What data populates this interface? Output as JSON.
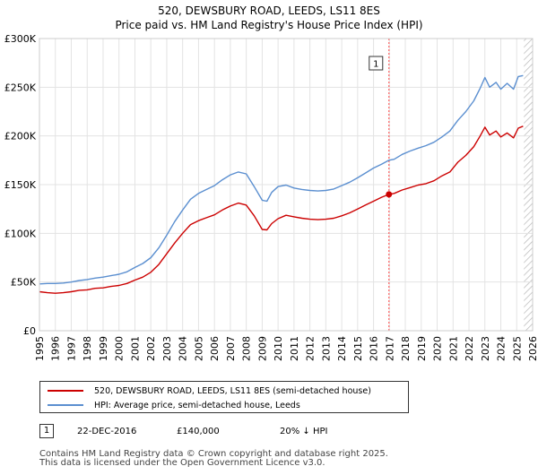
{
  "title_line1": "520, DEWSBURY ROAD, LEEDS, LS11 8ES",
  "title_line2": "Price paid vs. HM Land Registry's House Price Index (HPI)",
  "chart_data": {
    "type": "line",
    "title": "520, DEWSBURY ROAD, LEEDS, LS11 8ES — Price paid vs. HM Land Registry's House Price Index (HPI)",
    "xlabel": "",
    "ylabel": "",
    "xlim": [
      1995,
      2026
    ],
    "ylim": [
      0,
      300000
    ],
    "x_ticks": [
      1995,
      1996,
      1997,
      1998,
      1999,
      2000,
      2001,
      2002,
      2003,
      2004,
      2005,
      2006,
      2007,
      2008,
      2009,
      2010,
      2011,
      2012,
      2013,
      2014,
      2015,
      2016,
      2017,
      2018,
      2019,
      2020,
      2021,
      2022,
      2023,
      2024,
      2025,
      2026
    ],
    "y_ticks": [
      0,
      50000,
      100000,
      150000,
      200000,
      250000,
      300000
    ],
    "y_tick_labels": [
      "£0",
      "£50K",
      "£100K",
      "£150K",
      "£200K",
      "£250K",
      "£300K"
    ],
    "grid": true,
    "colors": {
      "property": "#cc0000",
      "hpi": "#5b8fd0",
      "marker_line": "#ff4444",
      "future_hatch": "#bbbbbb"
    },
    "series": [
      {
        "name": "520, DEWSBURY ROAD, LEEDS, LS11 8ES (semi-detached house)",
        "x": [
          1995,
          1995.5,
          1996,
          1996.5,
          1997,
          1997.5,
          1998,
          1998.5,
          1999,
          1999.5,
          2000,
          2000.5,
          2001,
          2001.5,
          2002,
          2002.5,
          2003,
          2003.5,
          2004,
          2004.5,
          2005,
          2005.5,
          2006,
          2006.5,
          2007,
          2007.5,
          2008,
          2008.5,
          2009,
          2009.3,
          2009.6,
          2010,
          2010.5,
          2011,
          2011.5,
          2012,
          2012.5,
          2013,
          2013.5,
          2014,
          2014.5,
          2015,
          2015.5,
          2016,
          2016.5,
          2016.97,
          2017.3,
          2017.8,
          2018.3,
          2018.8,
          2019.3,
          2019.8,
          2020.3,
          2020.8,
          2021.3,
          2021.8,
          2022.3,
          2022.7,
          2023,
          2023.3,
          2023.7,
          2024,
          2024.4,
          2024.8,
          2025.1,
          2025.4
        ],
        "values": [
          40000,
          39000,
          38500,
          39000,
          40000,
          41500,
          42000,
          43500,
          44000,
          45500,
          46500,
          48500,
          52000,
          55000,
          60000,
          68000,
          79000,
          90000,
          100000,
          109000,
          113000,
          116000,
          119000,
          124000,
          128000,
          131000,
          129000,
          118000,
          104000,
          103500,
          110000,
          115000,
          118500,
          117000,
          115500,
          114500,
          114000,
          114500,
          115500,
          118000,
          121000,
          125000,
          129000,
          133000,
          137000,
          140000,
          141000,
          144500,
          147000,
          149500,
          151000,
          154000,
          159000,
          163000,
          173000,
          180000,
          189000,
          200000,
          209000,
          201000,
          205000,
          199000,
          203000,
          198000,
          208000,
          210000
        ]
      },
      {
        "name": "HPI: Average price, semi-detached house, Leeds",
        "x": [
          1995,
          1995.5,
          1996,
          1996.5,
          1997,
          1997.5,
          1998,
          1998.5,
          1999,
          1999.5,
          2000,
          2000.5,
          2001,
          2001.5,
          2002,
          2002.5,
          2003,
          2003.5,
          2004,
          2004.5,
          2005,
          2005.5,
          2006,
          2006.5,
          2007,
          2007.5,
          2008,
          2008.5,
          2009,
          2009.3,
          2009.6,
          2010,
          2010.5,
          2011,
          2011.5,
          2012,
          2012.5,
          2013,
          2013.5,
          2014,
          2014.5,
          2015,
          2015.5,
          2016,
          2016.5,
          2016.97,
          2017.3,
          2017.8,
          2018.3,
          2018.8,
          2019.3,
          2019.8,
          2020.3,
          2020.8,
          2021.3,
          2021.8,
          2022.3,
          2022.7,
          2023,
          2023.3,
          2023.7,
          2024,
          2024.4,
          2024.8,
          2025.1,
          2025.4
        ],
        "values": [
          48000,
          48500,
          48500,
          49000,
          50000,
          51500,
          52500,
          54000,
          55000,
          56500,
          58000,
          60500,
          65000,
          69000,
          75000,
          85000,
          98000,
          112000,
          124000,
          135000,
          141000,
          145000,
          149000,
          155000,
          160000,
          163000,
          161000,
          148000,
          134000,
          133000,
          142000,
          148000,
          149500,
          146500,
          145000,
          144000,
          143500,
          144000,
          145500,
          149000,
          152500,
          157000,
          162000,
          167000,
          171000,
          175000,
          176000,
          181000,
          184500,
          187500,
          190000,
          193500,
          199000,
          205000,
          216000,
          225000,
          236000,
          249000,
          260000,
          250000,
          255000,
          248000,
          254000,
          248000,
          261000,
          262000
        ]
      }
    ],
    "annotations": [
      {
        "label": "1",
        "x": 2016.97,
        "y": 140000,
        "date": "22-DEC-2016",
        "price": "£140,000",
        "hpi_note": "20% ↓ HPI"
      }
    ],
    "legend_position": "bottom-left"
  },
  "legend": {
    "property_label": "520, DEWSBURY ROAD, LEEDS, LS11 8ES (semi-detached house)",
    "hpi_label": "HPI: Average price, semi-detached house, Leeds"
  },
  "sale": {
    "badge": "1",
    "date": "22-DEC-2016",
    "price": "£140,000",
    "hpi": "20% ↓ HPI"
  },
  "footer": {
    "line1": "Contains HM Land Registry data © Crown copyright and database right 2025.",
    "line2": "This data is licensed under the Open Government Licence v3.0."
  }
}
